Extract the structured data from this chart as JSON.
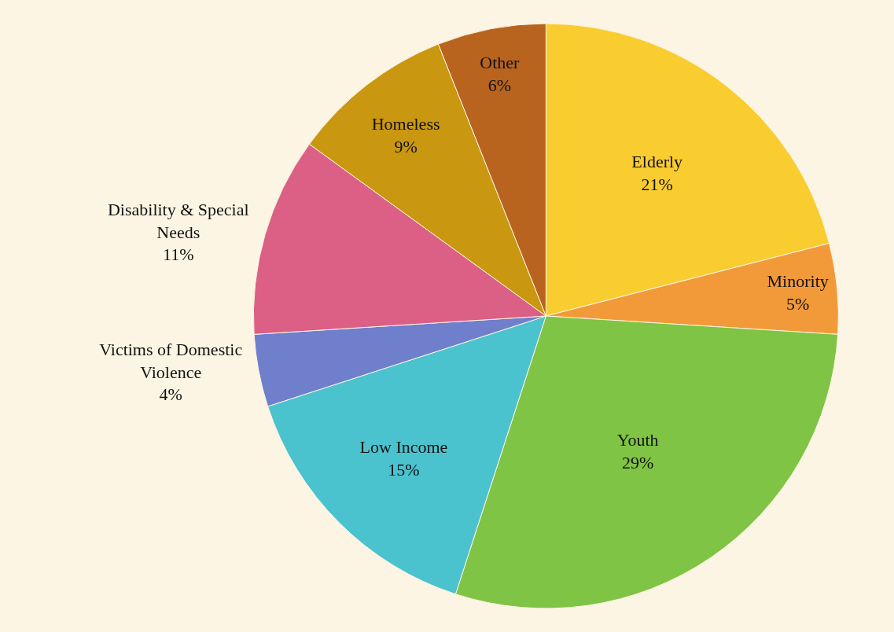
{
  "chart_data": {
    "type": "pie",
    "categories": [
      "Elderly",
      "Minority",
      "Youth",
      "Low Income",
      "Victims of Domestic Violence",
      "Disability & Special Needs",
      "Homeless",
      "Other"
    ],
    "values": [
      21,
      5,
      29,
      15,
      4,
      11,
      9,
      6
    ],
    "value_labels": [
      "21%",
      "5%",
      "29%",
      "15%",
      "4%",
      "11%",
      "9%",
      "6%"
    ],
    "colors": [
      "#f9cc30",
      "#f29a3a",
      "#7fc444",
      "#4bc3cf",
      "#6f7fcc",
      "#dc5f85",
      "#c99710",
      "#b8641f"
    ],
    "legend": false
  }
}
